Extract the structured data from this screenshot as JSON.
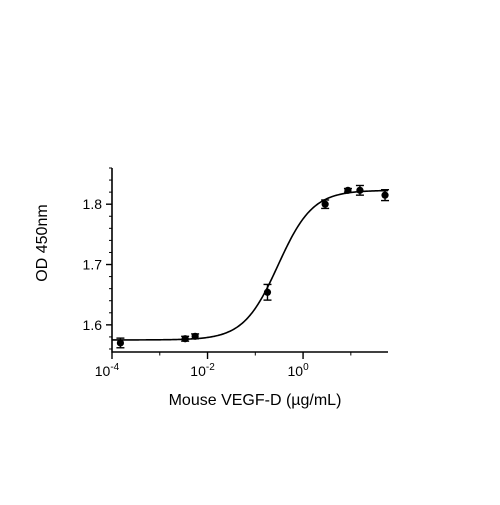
{
  "chart_data": {
    "type": "scatter",
    "title": "",
    "xlabel": "Mouse VEGF-D (µg/mL)",
    "ylabel": "OD 450nm",
    "x_scale": "log10",
    "xlim": [
      0.0001,
      60
    ],
    "ylim": [
      1.555,
      1.86
    ],
    "grid": false,
    "x_ticks": [
      {
        "base": "10",
        "exp": "-4",
        "value": 0.0001
      },
      {
        "base": "10",
        "exp": "-2",
        "value": 0.01
      },
      {
        "base": "10",
        "exp": "0",
        "value": 1
      }
    ],
    "y_ticks": [
      {
        "label": "1.6",
        "value": 1.6
      },
      {
        "label": "1.7",
        "value": 1.7
      },
      {
        "label": "1.8",
        "value": 1.8
      }
    ],
    "series": [
      {
        "points": [
          {
            "x": 0.00015,
            "y": 1.57,
            "err": 0.008
          },
          {
            "x": 0.0034,
            "y": 1.577,
            "err": 0.004
          },
          {
            "x": 0.0055,
            "y": 1.581,
            "err": 0.004
          },
          {
            "x": 0.18,
            "y": 1.654,
            "err": 0.013
          },
          {
            "x": 2.9,
            "y": 1.8,
            "err": 0.007
          },
          {
            "x": 8.7,
            "y": 1.823,
            "err": 0.003
          },
          {
            "x": 15.5,
            "y": 1.823,
            "err": 0.008
          },
          {
            "x": 52,
            "y": 1.815,
            "err": 0.009
          }
        ]
      }
    ],
    "fit": {
      "model": "4PL",
      "bottom": 1.575,
      "top": 1.823,
      "ec50": 0.3,
      "hill": 1.2
    },
    "colors": {
      "line": "#000000",
      "marker": "#000000",
      "background": "#ffffff"
    }
  }
}
